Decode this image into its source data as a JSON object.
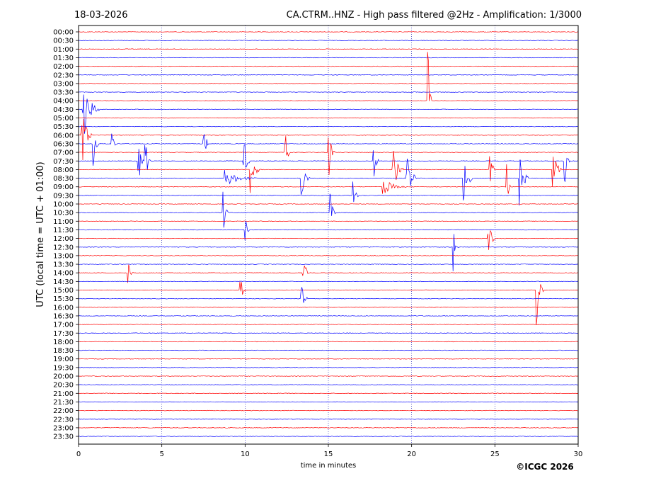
{
  "chart_data": {
    "type": "line",
    "title_left": "18-03-2026",
    "title_right": "CA.CTRM..HNZ - High pass filtered @2Hz - Amplification: 1/3000",
    "xlabel": "time in minutes",
    "ylabel": "UTC (local time = UTC + 01:00)",
    "copyright": "©ICGC 2026",
    "xlim": [
      0,
      30
    ],
    "x_ticks": [
      "0",
      "5",
      "10",
      "15",
      "20",
      "25",
      "30"
    ],
    "x_tick_values": [
      0,
      5,
      10,
      15,
      20,
      25,
      30
    ],
    "vertical_gridlines_minutes": [
      5,
      10,
      15,
      20,
      25
    ],
    "trace_colors": [
      "#ff0000",
      "#0000ff"
    ],
    "row_labels": [
      "00:00",
      "00:30",
      "01:00",
      "01:30",
      "02:00",
      "02:30",
      "03:00",
      "03:30",
      "04:00",
      "04:30",
      "05:00",
      "05:30",
      "06:00",
      "06:30",
      "07:00",
      "07:30",
      "08:00",
      "08:30",
      "09:00",
      "09:30",
      "10:00",
      "10:30",
      "11:00",
      "11:30",
      "12:00",
      "12:30",
      "13:00",
      "13:30",
      "14:00",
      "14:30",
      "15:00",
      "15:30",
      "16:00",
      "16:30",
      "17:00",
      "17:30",
      "18:00",
      "18:30",
      "19:00",
      "19:30",
      "20:00",
      "20:30",
      "21:00",
      "21:30",
      "22:00",
      "22:30",
      "23:00",
      "23:30"
    ],
    "events": [
      {
        "row": 9,
        "minute": 0.3,
        "amplitude": 3.5,
        "duration": 1.0
      },
      {
        "row": 12,
        "minute": 0.2,
        "amplitude": 4.0,
        "duration": 0.6
      },
      {
        "row": 13,
        "minute": 0.9,
        "amplitude": 3.0,
        "duration": 0.3
      },
      {
        "row": 13,
        "minute": 2.0,
        "amplitude": 2.0,
        "duration": 0.3
      },
      {
        "row": 15,
        "minute": 3.6,
        "amplitude": 4.0,
        "duration": 0.3
      },
      {
        "row": 15,
        "minute": 4.0,
        "amplitude": 4.0,
        "duration": 0.3
      },
      {
        "row": 13,
        "minute": 7.5,
        "amplitude": 4.0,
        "duration": 0.3
      },
      {
        "row": 17,
        "minute": 8.8,
        "amplitude": 1.0,
        "duration": 2.0
      },
      {
        "row": 21,
        "minute": 8.7,
        "amplitude": 3.0,
        "duration": 0.3
      },
      {
        "row": 15,
        "minute": 9.9,
        "amplitude": 4.0,
        "duration": 0.4
      },
      {
        "row": 16,
        "minute": 10.3,
        "amplitude": 3.0,
        "duration": 0.6
      },
      {
        "row": 23,
        "minute": 10.0,
        "amplitude": 2.0,
        "duration": 0.3
      },
      {
        "row": 30,
        "minute": 9.7,
        "amplitude": 2.5,
        "duration": 0.3
      },
      {
        "row": 14,
        "minute": 12.4,
        "amplitude": 3.0,
        "duration": 0.3
      },
      {
        "row": 17,
        "minute": 13.4,
        "amplitude": 3.0,
        "duration": 0.5
      },
      {
        "row": 28,
        "minute": 13.5,
        "amplitude": 3.5,
        "duration": 0.3
      },
      {
        "row": 14,
        "minute": 15.0,
        "amplitude": 4.0,
        "duration": 0.4
      },
      {
        "row": 21,
        "minute": 15.1,
        "amplitude": 3.0,
        "duration": 0.3
      },
      {
        "row": 19,
        "minute": 16.5,
        "amplitude": 2.5,
        "duration": 0.3
      },
      {
        "row": 15,
        "minute": 17.7,
        "amplitude": 4.0,
        "duration": 0.3
      },
      {
        "row": 18,
        "minute": 18.3,
        "amplitude": 1.0,
        "duration": 1.5
      },
      {
        "row": 16,
        "minute": 18.9,
        "amplitude": 3.0,
        "duration": 0.6
      },
      {
        "row": 17,
        "minute": 19.7,
        "amplitude": 4.0,
        "duration": 0.6
      },
      {
        "row": 8,
        "minute": 21.0,
        "amplitude": 6.0,
        "duration": 0.2
      },
      {
        "row": 25,
        "minute": 22.5,
        "amplitude": 3.0,
        "duration": 0.3
      },
      {
        "row": 17,
        "minute": 23.1,
        "amplitude": 4.0,
        "duration": 0.6
      },
      {
        "row": 16,
        "minute": 24.7,
        "amplitude": 3.0,
        "duration": 0.3
      },
      {
        "row": 24,
        "minute": 24.6,
        "amplitude": 3.0,
        "duration": 0.4
      },
      {
        "row": 18,
        "minute": 25.7,
        "amplitude": 3.0,
        "duration": 0.3
      },
      {
        "row": 17,
        "minute": 26.5,
        "amplitude": 3.5,
        "duration": 0.5
      },
      {
        "row": 30,
        "minute": 27.5,
        "amplitude": 5.0,
        "duration": 0.4
      },
      {
        "row": 16,
        "minute": 28.5,
        "amplitude": 3.0,
        "duration": 0.5
      },
      {
        "row": 15,
        "minute": 29.2,
        "amplitude": 3.0,
        "duration": 0.3
      },
      {
        "row": 31,
        "minute": 13.4,
        "amplitude": 1.5,
        "duration": 0.4
      },
      {
        "row": 28,
        "minute": 3.0,
        "amplitude": 1.5,
        "duration": 0.3
      }
    ]
  }
}
